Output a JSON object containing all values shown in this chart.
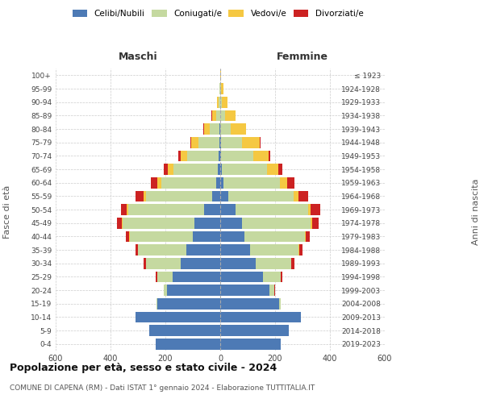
{
  "age_groups": [
    "0-4",
    "5-9",
    "10-14",
    "15-19",
    "20-24",
    "25-29",
    "30-34",
    "35-39",
    "40-44",
    "45-49",
    "50-54",
    "55-59",
    "60-64",
    "65-69",
    "70-74",
    "75-79",
    "80-84",
    "85-89",
    "90-94",
    "95-99",
    "100+"
  ],
  "birth_years": [
    "2019-2023",
    "2014-2018",
    "2009-2013",
    "2004-2008",
    "1999-2003",
    "1994-1998",
    "1989-1993",
    "1984-1988",
    "1979-1983",
    "1974-1978",
    "1969-1973",
    "1964-1968",
    "1959-1963",
    "1954-1958",
    "1949-1953",
    "1944-1948",
    "1939-1943",
    "1934-1938",
    "1929-1933",
    "1924-1928",
    "≤ 1923"
  ],
  "males": {
    "celibe": [
      235,
      260,
      310,
      230,
      195,
      175,
      145,
      125,
      100,
      95,
      60,
      30,
      15,
      10,
      5,
      3,
      2,
      1,
      0,
      0,
      0
    ],
    "coniugato": [
      0,
      0,
      0,
      2,
      10,
      55,
      125,
      175,
      230,
      260,
      275,
      240,
      200,
      160,
      115,
      75,
      35,
      15,
      5,
      2,
      0
    ],
    "vedovo": [
      0,
      0,
      0,
      0,
      0,
      0,
      0,
      0,
      2,
      3,
      5,
      10,
      15,
      20,
      25,
      28,
      22,
      14,
      6,
      2,
      1
    ],
    "divorziato": [
      0,
      0,
      0,
      0,
      2,
      4,
      8,
      10,
      12,
      18,
      22,
      28,
      22,
      15,
      8,
      4,
      2,
      1,
      0,
      0,
      0
    ]
  },
  "females": {
    "nubile": [
      220,
      250,
      295,
      215,
      180,
      155,
      130,
      110,
      88,
      80,
      55,
      28,
      12,
      7,
      3,
      2,
      1,
      0,
      0,
      0,
      0
    ],
    "coniugata": [
      0,
      0,
      0,
      5,
      18,
      65,
      130,
      175,
      220,
      250,
      265,
      240,
      205,
      165,
      118,
      78,
      38,
      18,
      6,
      2,
      0
    ],
    "vedova": [
      0,
      0,
      0,
      0,
      0,
      0,
      0,
      2,
      4,
      5,
      10,
      18,
      28,
      40,
      55,
      65,
      55,
      38,
      20,
      10,
      4
    ],
    "divorziata": [
      0,
      0,
      0,
      0,
      3,
      6,
      10,
      12,
      15,
      25,
      35,
      35,
      25,
      15,
      7,
      3,
      1,
      0,
      0,
      0,
      0
    ]
  },
  "colors": {
    "celibe_nubile": "#4d7ab5",
    "coniugato_a": "#c5d9a0",
    "vedovo_a": "#f5c842",
    "divorziato_a": "#cc2222"
  },
  "xlim": 600,
  "title": "Popolazione per età, sesso e stato civile - 2024",
  "subtitle": "COMUNE DI CAPENA (RM) - Dati ISTAT 1° gennaio 2024 - Elaborazione TUTTITALIA.IT",
  "ylabel_left": "Fasce di età",
  "ylabel_right": "Anni di nascita"
}
